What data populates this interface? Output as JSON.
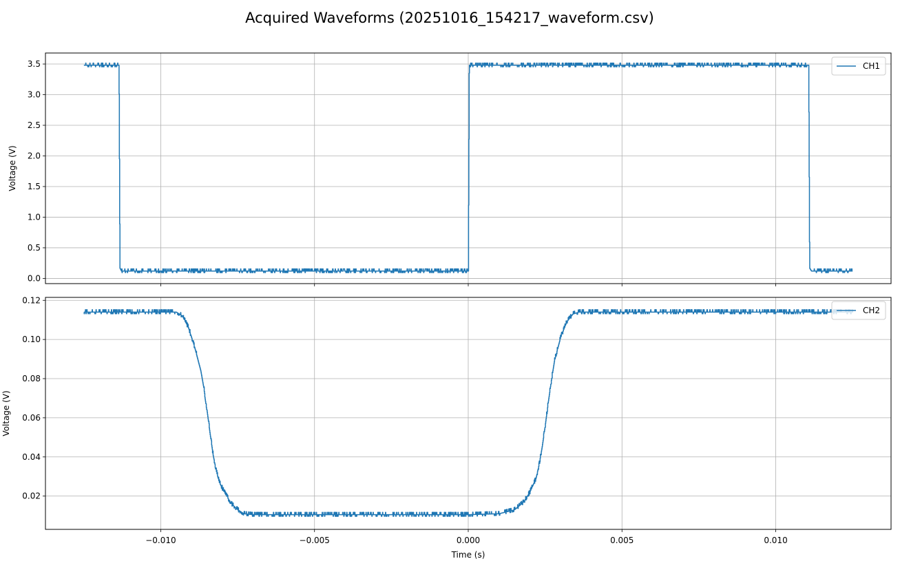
{
  "figure": {
    "title": "Acquired Waveforms (20251016_154217_waveform.csv)"
  },
  "chart_data": [
    {
      "type": "line",
      "title": "",
      "xlabel": "",
      "ylabel": "Voltage (V)",
      "xlim": [
        -0.01375,
        0.01375
      ],
      "ylim": [
        -0.085,
        3.68
      ],
      "xticks": [
        -0.01,
        -0.005,
        0.0,
        0.005,
        0.01
      ],
      "xtick_labels_visible": false,
      "yticks": [
        0.0,
        0.5,
        1.0,
        1.5,
        2.0,
        2.5,
        3.0,
        3.5
      ],
      "ytick_labels": [
        "0.0",
        "0.5",
        "1.0",
        "1.5",
        "2.0",
        "2.5",
        "3.0",
        "3.5"
      ],
      "grid": true,
      "legend": {
        "placement": "top-right"
      },
      "color": "#1f77b4",
      "series": [
        {
          "name": "CH1",
          "x": [
            -0.0125,
            -0.01136,
            -0.01133,
            -0.01128,
            0.0,
            3e-05,
            0.01107,
            0.0111,
            0.01116,
            0.0125
          ],
          "y": [
            3.48,
            3.48,
            0.17,
            0.12,
            0.12,
            3.48,
            3.48,
            0.17,
            0.12,
            0.12
          ],
          "noise": 0.035
        }
      ]
    },
    {
      "type": "line",
      "title": "",
      "xlabel": "Time (s)",
      "ylabel": "Voltage (V)",
      "xlim": [
        -0.01375,
        0.01375
      ],
      "ylim": [
        0.003,
        0.1215
      ],
      "xticks": [
        -0.01,
        -0.005,
        0.0,
        0.005,
        0.01
      ],
      "xtick_labels": [
        "−0.010",
        "−0.005",
        "0.000",
        "0.005",
        "0.010"
      ],
      "yticks": [
        0.02,
        0.04,
        0.06,
        0.08,
        0.1,
        0.12
      ],
      "ytick_labels": [
        "0.02",
        "0.04",
        "0.06",
        "0.08",
        "0.10",
        "0.12"
      ],
      "grid": true,
      "legend": {
        "placement": "top-right"
      },
      "color": "#1f77b4",
      "series": [
        {
          "name": "CH2",
          "x": [
            -0.0125,
            -0.0095,
            -0.0093,
            -0.0091,
            -0.0089,
            -0.0087,
            -0.0086,
            -0.0085,
            -0.0084,
            -0.0083,
            -0.0082,
            -0.0081,
            -0.0079,
            -0.0077,
            -0.0075,
            -0.0073,
            -0.007,
            -0.005,
            0.0,
            0.001,
            0.0015,
            0.0018,
            0.002,
            0.0022,
            0.0023,
            0.0024,
            0.0025,
            0.0026,
            0.0027,
            0.0028,
            0.003,
            0.0032,
            0.0034,
            0.0036,
            0.004,
            0.008,
            0.0125
          ],
          "y": [
            0.114,
            0.114,
            0.112,
            0.106,
            0.096,
            0.084,
            0.075,
            0.064,
            0.052,
            0.041,
            0.033,
            0.027,
            0.021,
            0.016,
            0.013,
            0.011,
            0.0105,
            0.0105,
            0.0105,
            0.011,
            0.013,
            0.017,
            0.022,
            0.029,
            0.036,
            0.045,
            0.056,
            0.068,
            0.079,
            0.089,
            0.101,
            0.109,
            0.113,
            0.114,
            0.114,
            0.114,
            0.114
          ],
          "noise": 0.0012
        }
      ]
    }
  ]
}
